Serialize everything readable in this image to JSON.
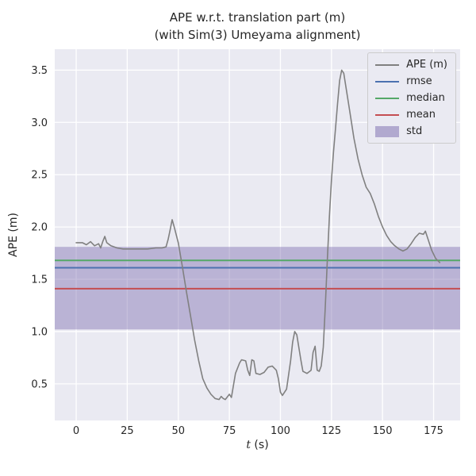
{
  "figure": {
    "title_line1": "APE w.r.t. translation part (m)",
    "title_line2": "(with Sim(3) Umeyama alignment)",
    "ylabel": "APE (m)",
    "xlabel_var": "t",
    "xlabel_unit": " (s)"
  },
  "style": {
    "axes_bg": "#eaeaf2",
    "grid_color": "#ffffff",
    "text_color": "#262626",
    "ape_color": "#808080",
    "rmse_color": "#4c72b0",
    "median_color": "#55a868",
    "mean_color": "#c44e52",
    "std_color": "#8172b2",
    "std_alpha": 0.45
  },
  "chart_data": {
    "type": "line",
    "title": "APE w.r.t. translation part (m)\n(with Sim(3) Umeyama alignment)",
    "xlabel": "t (s)",
    "ylabel": "APE (m)",
    "xlim": [
      -10.5,
      188
    ],
    "ylim": [
      0.15,
      3.7
    ],
    "xticks": [
      0,
      25,
      50,
      75,
      100,
      125,
      150,
      175
    ],
    "xtick_labels": [
      "0",
      "25",
      "50",
      "75",
      "100",
      "125",
      "150",
      "175"
    ],
    "yticks": [
      0.5,
      1.0,
      1.5,
      2.0,
      2.5,
      3.0,
      3.5
    ],
    "ytick_labels": [
      "0.5",
      "1.0",
      "1.5",
      "2.0",
      "2.5",
      "3.0",
      "3.5"
    ],
    "grid": true,
    "legend_position": "upper right",
    "legend": [
      "APE (m)",
      "rmse",
      "median",
      "mean",
      "std"
    ],
    "series": [
      {
        "name": "APE (m)",
        "type": "line",
        "color": "#808080",
        "x": [
          0,
          3,
          5,
          7,
          9,
          11,
          12,
          13,
          14,
          15,
          17,
          20,
          23,
          27,
          31,
          35,
          39,
          42,
          44,
          45,
          46,
          47,
          48,
          50,
          52,
          54,
          56,
          58,
          60,
          62,
          64,
          66,
          68,
          70,
          71,
          72,
          73,
          75,
          76,
          78,
          80,
          81,
          83,
          84,
          85,
          86,
          87,
          88,
          90,
          92,
          94,
          96,
          98,
          99,
          100,
          101,
          103,
          105,
          106,
          107,
          108,
          110,
          111,
          113,
          115,
          116,
          117,
          118,
          119,
          120,
          121,
          122,
          123,
          124,
          125,
          126,
          127,
          128,
          129,
          130,
          131,
          132,
          134,
          136,
          138,
          140,
          142,
          144,
          146,
          148,
          150,
          152,
          154,
          156,
          158,
          160,
          162,
          164,
          166,
          168,
          170,
          171,
          172,
          174,
          176,
          178
        ],
        "y": [
          1.85,
          1.85,
          1.83,
          1.86,
          1.82,
          1.84,
          1.8,
          1.86,
          1.91,
          1.85,
          1.82,
          1.8,
          1.79,
          1.79,
          1.79,
          1.79,
          1.8,
          1.8,
          1.81,
          1.88,
          1.97,
          2.07,
          2.0,
          1.85,
          1.62,
          1.38,
          1.15,
          0.92,
          0.72,
          0.55,
          0.46,
          0.4,
          0.36,
          0.35,
          0.38,
          0.36,
          0.35,
          0.4,
          0.37,
          0.6,
          0.7,
          0.73,
          0.72,
          0.63,
          0.58,
          0.73,
          0.72,
          0.6,
          0.59,
          0.61,
          0.66,
          0.67,
          0.63,
          0.55,
          0.42,
          0.39,
          0.45,
          0.72,
          0.9,
          1.0,
          0.97,
          0.73,
          0.62,
          0.6,
          0.63,
          0.8,
          0.86,
          0.63,
          0.62,
          0.67,
          0.85,
          1.25,
          1.7,
          2.1,
          2.45,
          2.72,
          2.95,
          3.18,
          3.4,
          3.5,
          3.47,
          3.35,
          3.1,
          2.85,
          2.65,
          2.5,
          2.38,
          2.32,
          2.22,
          2.1,
          2.0,
          1.92,
          1.86,
          1.82,
          1.79,
          1.77,
          1.79,
          1.84,
          1.9,
          1.94,
          1.93,
          1.96,
          1.9,
          1.78,
          1.7,
          1.66
        ]
      },
      {
        "name": "rmse",
        "type": "hline",
        "color": "#4c72b0",
        "value": 1.61
      },
      {
        "name": "median",
        "type": "hline",
        "color": "#55a868",
        "value": 1.68
      },
      {
        "name": "mean",
        "type": "hline",
        "color": "#c44e52",
        "value": 1.41
      },
      {
        "name": "std",
        "type": "band",
        "color": "#8172b2",
        "low": 1.02,
        "high": 1.81
      }
    ]
  }
}
